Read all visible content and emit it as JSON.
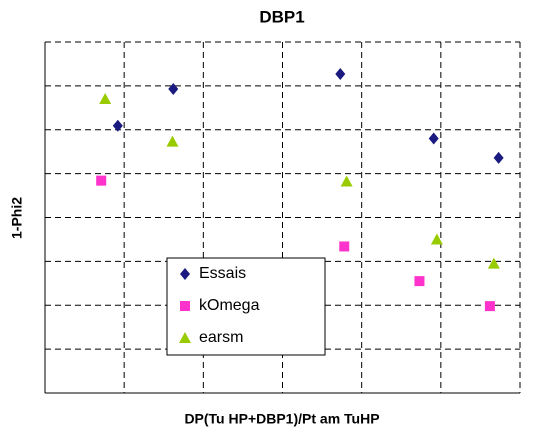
{
  "chart_data": {
    "type": "scatter",
    "title": "DBP1",
    "x_label": "DP(Tu HP+DBP1)/Pt am TuHP",
    "y_label": "1-Phi2",
    "xlim": [
      0,
      6
    ],
    "ylim": [
      0,
      8
    ],
    "xticks": [
      0,
      1,
      2,
      3,
      4,
      5,
      6
    ],
    "yticks": [
      0,
      1,
      2,
      3,
      4,
      5,
      6,
      7,
      8
    ],
    "grid": true,
    "legend": "bottom-center",
    "series": [
      {
        "name": "Essais",
        "color": "#1a1a80",
        "marker": "diamond",
        "x": [
          0.92,
          1.62,
          3.73,
          4.91,
          5.73
        ],
        "values": [
          6.09,
          6.93,
          7.27,
          5.8,
          5.36
        ]
      },
      {
        "name": "kOmega",
        "color": "#ff33cc",
        "marker": "square",
        "x": [
          0.71,
          3.78,
          4.73,
          5.62
        ],
        "values": [
          4.84,
          3.34,
          2.55,
          1.98
        ]
      },
      {
        "name": "earsm",
        "color": "#99cc00",
        "marker": "triangle",
        "x": [
          0.76,
          1.61,
          3.81,
          4.95,
          5.67
        ],
        "values": [
          6.7,
          5.73,
          4.82,
          3.5,
          2.95
        ]
      }
    ]
  }
}
